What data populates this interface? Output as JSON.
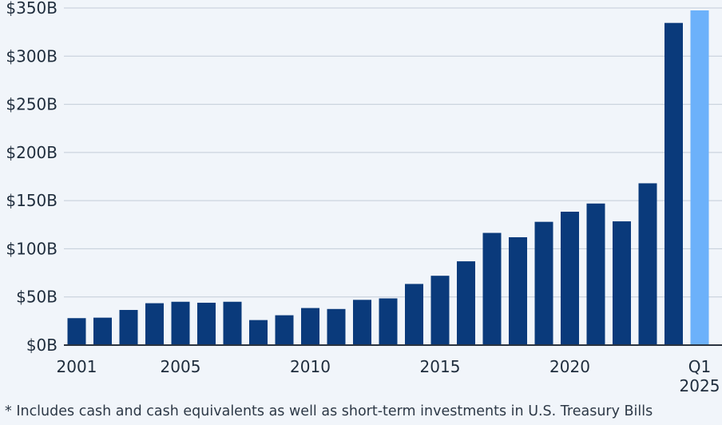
{
  "chart_data": {
    "type": "bar",
    "categories": [
      "2001",
      "2002",
      "2003",
      "2004",
      "2005",
      "2006",
      "2007",
      "2008",
      "2009",
      "2010",
      "2011",
      "2012",
      "2013",
      "2014",
      "2015",
      "2016",
      "2017",
      "2018",
      "2019",
      "2020",
      "2021",
      "2022",
      "2023",
      "2024",
      "Q1 2025"
    ],
    "values": [
      28,
      28.5,
      36.5,
      43.5,
      45,
      44,
      45,
      26,
      31,
      38.5,
      37.5,
      47,
      48.5,
      63.5,
      72,
      87,
      116.5,
      112,
      128,
      138.5,
      147,
      128.5,
      168,
      334.5,
      347.5
    ],
    "highlight_index": 24,
    "bar_color": "#0a3a7b",
    "highlight_color": "#6cb1fa",
    "ylim": [
      0,
      350
    ],
    "yticks": [
      0,
      50,
      100,
      150,
      200,
      250,
      300,
      350
    ],
    "ytick_labels": [
      "$0B",
      "$50B",
      "$100B",
      "$150B",
      "$200B",
      "$250B",
      "$300B",
      "$350B"
    ],
    "xtick_labels": [
      {
        "index": 0,
        "lines": [
          "2001"
        ]
      },
      {
        "index": 4,
        "lines": [
          "2005"
        ]
      },
      {
        "index": 9,
        "lines": [
          "2010"
        ]
      },
      {
        "index": 14,
        "lines": [
          "2015"
        ]
      },
      {
        "index": 19,
        "lines": [
          "2020"
        ]
      },
      {
        "index": 24,
        "lines": [
          "Q1",
          "2025"
        ]
      }
    ],
    "title": "",
    "xlabel": "",
    "ylabel": "",
    "grid": true
  },
  "footnote": "* Includes cash and cash equivalents as well as short-term investments in U.S. Treasury Bills"
}
